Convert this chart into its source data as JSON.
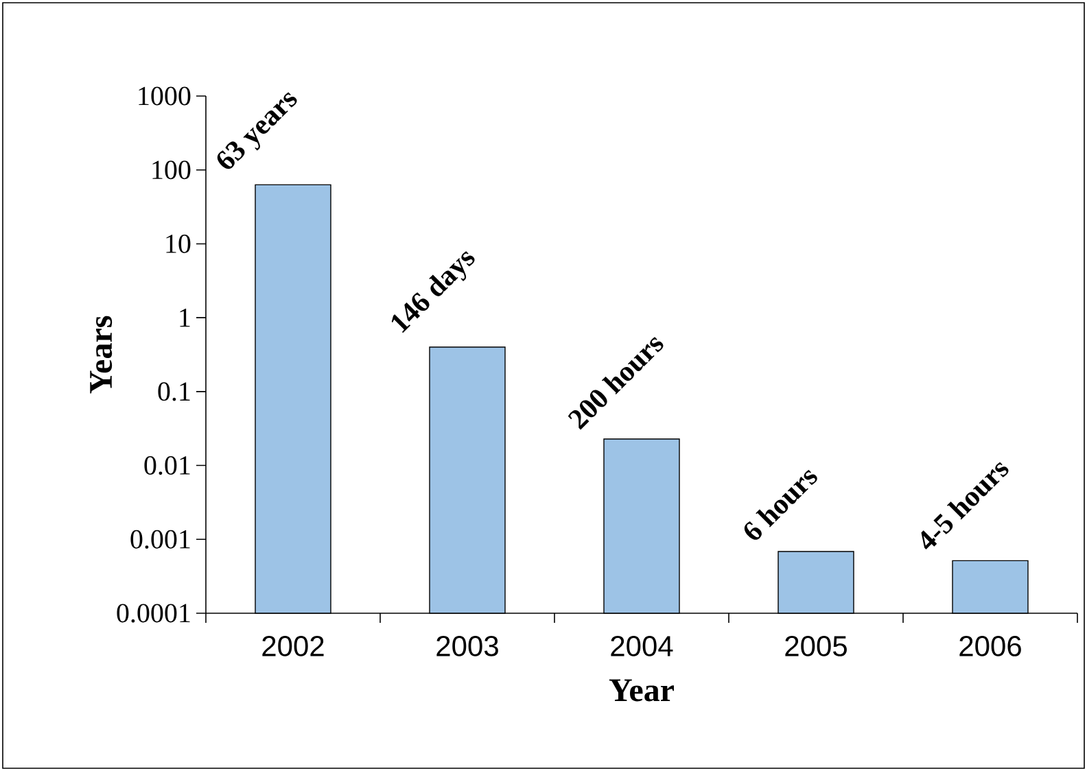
{
  "chart_data": {
    "type": "bar",
    "xlabel": "Year",
    "ylabel": "Years",
    "categories": [
      "2002",
      "2003",
      "2004",
      "2005",
      "2006"
    ],
    "values": [
      63,
      0.4,
      0.0228,
      0.000685,
      0.000514
    ],
    "annotations": [
      {
        "text": "63 years",
        "x": "2002",
        "y": 63
      },
      {
        "text": "146 days",
        "x": "2003",
        "y": 0.4
      },
      {
        "text": "200 hours",
        "x": "2004",
        "y": 0.0228
      },
      {
        "text": "6 hours",
        "x": "2005",
        "y": 0.000685
      },
      {
        "text": "4-5 hours",
        "x": "2006",
        "y": 0.000514
      }
    ],
    "color": "#9dc3e6",
    "log": true,
    "ylim": [
      0.0001,
      1000
    ],
    "yticks": [
      0.0001,
      0.001,
      0.01,
      0.1,
      1,
      10,
      100,
      1000
    ]
  }
}
